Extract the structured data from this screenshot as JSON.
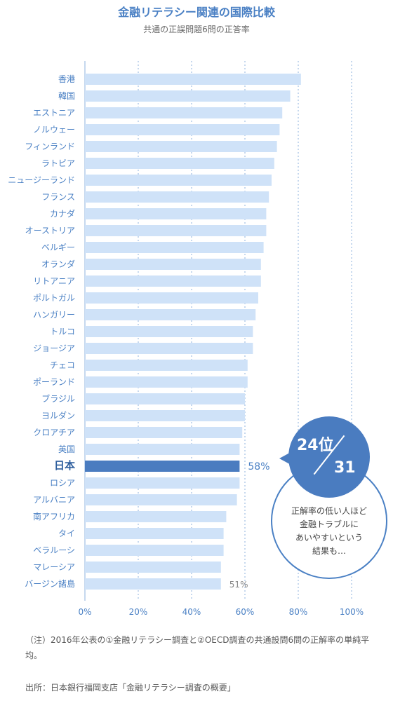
{
  "header": {
    "title": "金融リテラシー関連の国際比較",
    "subtitle": "共通の正誤問題6問の正答率"
  },
  "chart_data": {
    "type": "bar",
    "orientation": "horizontal",
    "title": "金融リテラシー関連の国際比較",
    "subtitle": "共通の正誤問題6問の正答率",
    "xlim": [
      0,
      100
    ],
    "x_ticks": [
      "0%",
      "20%",
      "40%",
      "60%",
      "80%",
      "100%"
    ],
    "grid": true,
    "categories": [
      "香港",
      "韓国",
      "エストニア",
      "ノルウェー",
      "フィンランド",
      "ラトビア",
      "ニュージーランド",
      "フランス",
      "カナダ",
      "オーストリア",
      "ベルギー",
      "オランダ",
      "リトアニア",
      "ポルトガル",
      "ハンガリー",
      "トルコ",
      "ジョージア",
      "チェコ",
      "ポーランド",
      "ブラジル",
      "ヨルダン",
      "クロアチア",
      "英国",
      "日本",
      "ロシア",
      "アルバニア",
      "南アフリカ",
      "タイ",
      "ベラルーシ",
      "マレーシア",
      "バージン諸島"
    ],
    "values": [
      81,
      77,
      74,
      73,
      72,
      71,
      70,
      69,
      68,
      68,
      67,
      66,
      66,
      65,
      64,
      63,
      63,
      61,
      61,
      60,
      60,
      59,
      58,
      58,
      58,
      57,
      53,
      52,
      52,
      51,
      51
    ],
    "highlight": "日本",
    "highlight_color": "#4a7cc0",
    "bar_color": "#cfe2f8",
    "data_labels": [
      {
        "category": "日本",
        "text": "58%"
      },
      {
        "category": "バージン諸島",
        "text": "51%"
      }
    ]
  },
  "rank_badge": {
    "rank": "24位",
    "total": "31",
    "note": "正解率の低い人ほど\n金融トラブルに\nあいやすいという\n結果も…"
  },
  "footnote": "（注）2016年公表の①金融リテラシー調査と②OECD調査の共通設問6問の正解率の単純平均。",
  "source": "出所：日本銀行福岡支店「金融リテラシー調査の概要」"
}
